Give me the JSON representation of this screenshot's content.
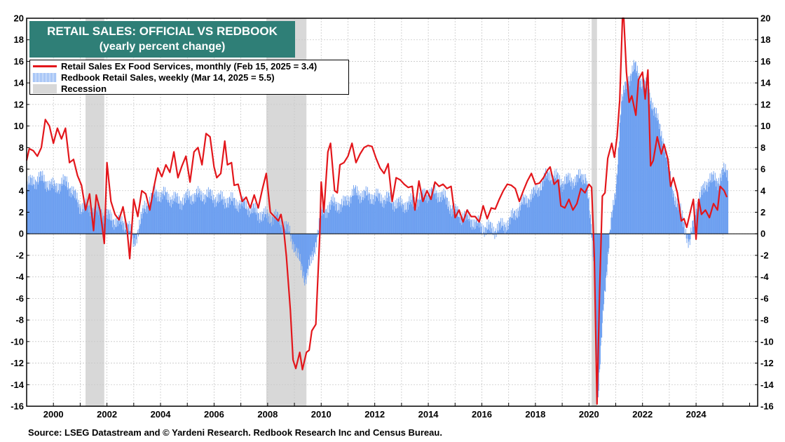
{
  "chart_data": {
    "type": "bar",
    "title": "RETAIL SALES: OFFICIAL VS REDBOOK",
    "subtitle": "(yearly percent change)",
    "xlim": [
      1999.0,
      2026.3
    ],
    "ylim": [
      -16,
      20
    ],
    "y_ticks": [
      20,
      18,
      16,
      14,
      12,
      10,
      8,
      6,
      4,
      2,
      0,
      -2,
      -4,
      -6,
      -8,
      -10,
      -12,
      -14,
      -16
    ],
    "x_ticks": [
      2000,
      2002,
      2004,
      2006,
      2008,
      2010,
      2012,
      2014,
      2016,
      2018,
      2020,
      2022,
      2024
    ],
    "grid": true,
    "legend_placement": "top-left",
    "recessions": [
      [
        2001.2,
        2001.9
      ],
      [
        2007.95,
        2009.45
      ],
      [
        2020.1,
        2020.3
      ]
    ],
    "series": [
      {
        "name": "Retail Sales Ex Food Services, monthly (Feb 15, 2025 = 3.4)",
        "kind": "line",
        "color": "#e3161b",
        "points": [
          [
            1999.0,
            6.8
          ],
          [
            1999.1,
            7.9
          ],
          [
            1999.25,
            7.7
          ],
          [
            1999.4,
            7.2
          ],
          [
            1999.55,
            8.0
          ],
          [
            1999.7,
            10.6
          ],
          [
            1999.85,
            10.0
          ],
          [
            2000.0,
            8.4
          ],
          [
            2000.15,
            9.8
          ],
          [
            2000.3,
            8.8
          ],
          [
            2000.45,
            9.8
          ],
          [
            2000.6,
            6.6
          ],
          [
            2000.75,
            6.9
          ],
          [
            2000.9,
            5.4
          ],
          [
            2001.05,
            4.5
          ],
          [
            2001.2,
            2.2
          ],
          [
            2001.35,
            3.7
          ],
          [
            2001.5,
            0.3
          ],
          [
            2001.6,
            3.6
          ],
          [
            2001.75,
            2.1
          ],
          [
            2001.9,
            -0.9
          ],
          [
            2002.0,
            6.6
          ],
          [
            2002.15,
            3.0
          ],
          [
            2002.3,
            1.8
          ],
          [
            2002.45,
            1.3
          ],
          [
            2002.6,
            2.5
          ],
          [
            2002.75,
            0.4
          ],
          [
            2002.85,
            -2.3
          ],
          [
            2003.0,
            3.2
          ],
          [
            2003.15,
            1.6
          ],
          [
            2003.3,
            4.0
          ],
          [
            2003.45,
            3.7
          ],
          [
            2003.6,
            2.2
          ],
          [
            2003.75,
            4.3
          ],
          [
            2003.9,
            6.1
          ],
          [
            2004.05,
            5.3
          ],
          [
            2004.2,
            6.4
          ],
          [
            2004.35,
            5.7
          ],
          [
            2004.5,
            7.6
          ],
          [
            2004.65,
            5.2
          ],
          [
            2004.8,
            6.3
          ],
          [
            2004.95,
            7.2
          ],
          [
            2005.1,
            4.8
          ],
          [
            2005.25,
            7.6
          ],
          [
            2005.4,
            8.0
          ],
          [
            2005.55,
            6.4
          ],
          [
            2005.7,
            9.3
          ],
          [
            2005.85,
            9.0
          ],
          [
            2006.0,
            6.2
          ],
          [
            2006.1,
            5.2
          ],
          [
            2006.25,
            5.6
          ],
          [
            2006.4,
            8.6
          ],
          [
            2006.5,
            6.4
          ],
          [
            2006.65,
            6.6
          ],
          [
            2006.75,
            4.5
          ],
          [
            2006.9,
            4.6
          ],
          [
            2007.05,
            3.0
          ],
          [
            2007.2,
            3.4
          ],
          [
            2007.35,
            2.4
          ],
          [
            2007.5,
            3.6
          ],
          [
            2007.65,
            2.4
          ],
          [
            2007.8,
            4.1
          ],
          [
            2007.95,
            5.6
          ],
          [
            2008.1,
            2.0
          ],
          [
            2008.25,
            1.6
          ],
          [
            2008.4,
            1.2
          ],
          [
            2008.5,
            1.8
          ],
          [
            2008.6,
            0.4
          ],
          [
            2008.7,
            -2.1
          ],
          [
            2008.85,
            -7.1
          ],
          [
            2008.95,
            -11.7
          ],
          [
            2009.05,
            -12.5
          ],
          [
            2009.2,
            -11.0
          ],
          [
            2009.3,
            -12.6
          ],
          [
            2009.45,
            -11.0
          ],
          [
            2009.55,
            -10.8
          ],
          [
            2009.65,
            -9.0
          ],
          [
            2009.8,
            -8.4
          ],
          [
            2009.95,
            0.0
          ],
          [
            2010.0,
            4.8
          ],
          [
            2010.1,
            2.0
          ],
          [
            2010.25,
            7.6
          ],
          [
            2010.35,
            8.4
          ],
          [
            2010.5,
            4.0
          ],
          [
            2010.6,
            3.8
          ],
          [
            2010.7,
            6.4
          ],
          [
            2010.85,
            6.6
          ],
          [
            2011.0,
            7.2
          ],
          [
            2011.15,
            8.4
          ],
          [
            2011.3,
            6.6
          ],
          [
            2011.45,
            7.4
          ],
          [
            2011.6,
            8.0
          ],
          [
            2011.75,
            8.2
          ],
          [
            2011.9,
            8.1
          ],
          [
            2012.05,
            7.0
          ],
          [
            2012.2,
            6.1
          ],
          [
            2012.35,
            5.6
          ],
          [
            2012.5,
            6.5
          ],
          [
            2012.65,
            3.0
          ],
          [
            2012.8,
            5.2
          ],
          [
            2012.95,
            5.0
          ],
          [
            2013.1,
            4.6
          ],
          [
            2013.25,
            4.3
          ],
          [
            2013.4,
            4.4
          ],
          [
            2013.5,
            2.2
          ],
          [
            2013.65,
            4.9
          ],
          [
            2013.8,
            3.0
          ],
          [
            2013.95,
            4.0
          ],
          [
            2014.1,
            3.2
          ],
          [
            2014.25,
            4.8
          ],
          [
            2014.4,
            4.4
          ],
          [
            2014.55,
            4.6
          ],
          [
            2014.7,
            4.2
          ],
          [
            2014.85,
            4.4
          ],
          [
            2015.0,
            1.5
          ],
          [
            2015.15,
            2.2
          ],
          [
            2015.3,
            1.1
          ],
          [
            2015.45,
            2.2
          ],
          [
            2015.6,
            1.6
          ],
          [
            2015.75,
            1.6
          ],
          [
            2015.9,
            1.1
          ],
          [
            2016.05,
            2.6
          ],
          [
            2016.2,
            1.4
          ],
          [
            2016.35,
            2.4
          ],
          [
            2016.5,
            2.3
          ],
          [
            2016.65,
            3.2
          ],
          [
            2016.8,
            4.0
          ],
          [
            2016.95,
            4.6
          ],
          [
            2017.1,
            4.5
          ],
          [
            2017.25,
            4.2
          ],
          [
            2017.4,
            3.0
          ],
          [
            2017.55,
            4.0
          ],
          [
            2017.7,
            4.9
          ],
          [
            2017.85,
            5.6
          ],
          [
            2018.0,
            4.6
          ],
          [
            2018.15,
            4.7
          ],
          [
            2018.3,
            5.2
          ],
          [
            2018.45,
            5.9
          ],
          [
            2018.55,
            6.2
          ],
          [
            2018.7,
            4.6
          ],
          [
            2018.85,
            5.0
          ],
          [
            2018.95,
            2.6
          ],
          [
            2019.1,
            2.4
          ],
          [
            2019.25,
            3.2
          ],
          [
            2019.4,
            2.2
          ],
          [
            2019.55,
            2.8
          ],
          [
            2019.7,
            4.2
          ],
          [
            2019.85,
            3.8
          ],
          [
            2020.0,
            4.6
          ],
          [
            2020.1,
            4.3
          ],
          [
            2020.2,
            -2.0
          ],
          [
            2020.3,
            -15.8
          ],
          [
            2020.4,
            -5.0
          ],
          [
            2020.5,
            3.5
          ],
          [
            2020.6,
            3.8
          ],
          [
            2020.7,
            7.0
          ],
          [
            2020.85,
            8.4
          ],
          [
            2020.95,
            7.1
          ],
          [
            2021.05,
            9.0
          ],
          [
            2021.15,
            12.4
          ],
          [
            2021.25,
            20.0
          ],
          [
            2021.3,
            20.0
          ],
          [
            2021.4,
            15.0
          ],
          [
            2021.5,
            12.2
          ],
          [
            2021.6,
            12.8
          ],
          [
            2021.75,
            11.0
          ],
          [
            2021.85,
            14.3
          ],
          [
            2022.0,
            15.0
          ],
          [
            2022.1,
            12.5
          ],
          [
            2022.2,
            15.2
          ],
          [
            2022.3,
            6.3
          ],
          [
            2022.4,
            6.8
          ],
          [
            2022.55,
            9.0
          ],
          [
            2022.7,
            7.4
          ],
          [
            2022.8,
            8.3
          ],
          [
            2022.95,
            6.9
          ],
          [
            2023.05,
            4.4
          ],
          [
            2023.15,
            5.2
          ],
          [
            2023.3,
            3.8
          ],
          [
            2023.45,
            1.2
          ],
          [
            2023.55,
            1.4
          ],
          [
            2023.65,
            0.6
          ],
          [
            2023.8,
            2.2
          ],
          [
            2023.9,
            3.2
          ],
          [
            2024.0,
            -0.5
          ],
          [
            2024.1,
            3.2
          ],
          [
            2024.2,
            1.8
          ],
          [
            2024.35,
            2.2
          ],
          [
            2024.5,
            1.5
          ],
          [
            2024.65,
            2.8
          ],
          [
            2024.8,
            2.2
          ],
          [
            2024.9,
            4.4
          ],
          [
            2025.05,
            4.0
          ],
          [
            2025.15,
            3.4
          ]
        ]
      },
      {
        "name": "Redbook Retail Sales, weekly (Mar 14, 2025 = 5.5)",
        "kind": "bar",
        "color": "#6b9ef0",
        "points": [
          [
            1999.0,
            4.5
          ],
          [
            1999.5,
            5.2
          ],
          [
            2000.0,
            4.3
          ],
          [
            2000.5,
            4.8
          ],
          [
            2001.0,
            2.6
          ],
          [
            2001.5,
            2.2
          ],
          [
            2001.9,
            1.8
          ],
          [
            2002.3,
            1.2
          ],
          [
            2002.8,
            0.8
          ],
          [
            2003.0,
            -1.0
          ],
          [
            2003.4,
            2.4
          ],
          [
            2003.8,
            3.8
          ],
          [
            2004.3,
            3.4
          ],
          [
            2004.7,
            3.0
          ],
          [
            2005.2,
            3.5
          ],
          [
            2005.7,
            3.6
          ],
          [
            2006.2,
            3.2
          ],
          [
            2006.7,
            3.0
          ],
          [
            2007.2,
            2.6
          ],
          [
            2007.7,
            1.8
          ],
          [
            2008.0,
            1.6
          ],
          [
            2008.4,
            1.4
          ],
          [
            2008.8,
            0.2
          ],
          [
            2009.1,
            -1.8
          ],
          [
            2009.4,
            -4.2
          ],
          [
            2009.7,
            -2.0
          ],
          [
            2010.0,
            1.8
          ],
          [
            2010.4,
            2.8
          ],
          [
            2010.8,
            2.6
          ],
          [
            2011.2,
            3.8
          ],
          [
            2011.6,
            3.6
          ],
          [
            2012.0,
            3.4
          ],
          [
            2012.5,
            3.2
          ],
          [
            2013.0,
            2.6
          ],
          [
            2013.5,
            3.0
          ],
          [
            2014.0,
            3.8
          ],
          [
            2014.5,
            3.6
          ],
          [
            2015.0,
            2.0
          ],
          [
            2015.5,
            1.4
          ],
          [
            2016.0,
            0.6
          ],
          [
            2016.5,
            0.4
          ],
          [
            2017.0,
            1.0
          ],
          [
            2017.5,
            2.8
          ],
          [
            2018.0,
            3.8
          ],
          [
            2018.5,
            5.6
          ],
          [
            2019.0,
            4.8
          ],
          [
            2019.5,
            5.0
          ],
          [
            2019.9,
            5.4
          ],
          [
            2020.2,
            -3.0
          ],
          [
            2020.35,
            -15.0
          ],
          [
            2020.55,
            -6.5
          ],
          [
            2020.8,
            0.6
          ],
          [
            2021.0,
            3.8
          ],
          [
            2021.2,
            12.0
          ],
          [
            2021.4,
            14.0
          ],
          [
            2021.7,
            15.5
          ],
          [
            2022.0,
            14.0
          ],
          [
            2022.2,
            13.5
          ],
          [
            2022.5,
            11.0
          ],
          [
            2022.8,
            8.5
          ],
          [
            2023.0,
            5.5
          ],
          [
            2023.25,
            3.0
          ],
          [
            2023.5,
            1.5
          ],
          [
            2023.75,
            -1.2
          ],
          [
            2024.0,
            2.6
          ],
          [
            2024.5,
            5.2
          ],
          [
            2024.8,
            4.8
          ],
          [
            2025.0,
            5.8
          ],
          [
            2025.2,
            5.5
          ]
        ]
      },
      {
        "name": "Recession",
        "kind": "shade",
        "color": "#d8d8d8"
      }
    ]
  },
  "source": "Source: LSEG Datastream and © Yardeni Research. Redbook Research Inc and Census Bureau."
}
